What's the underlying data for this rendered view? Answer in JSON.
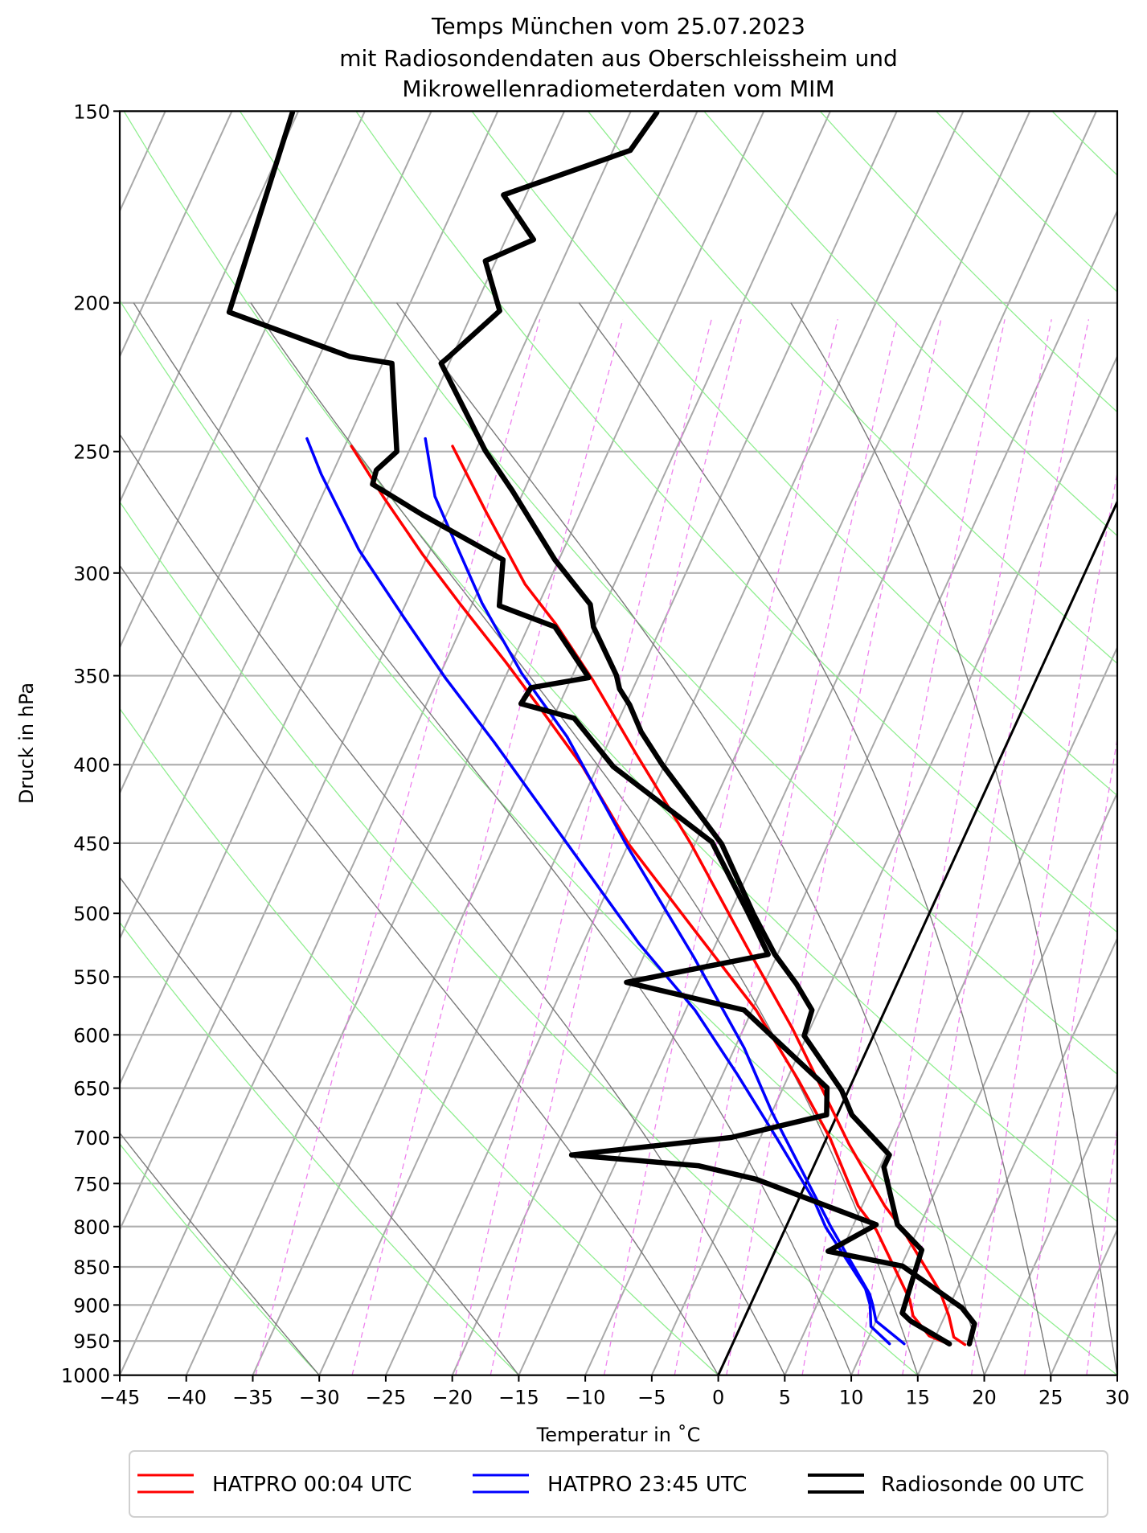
{
  "chart_data": {
    "type": "line",
    "subtype": "skew-T log-p diagram",
    "title": [
      "Temps München vom 25.07.2023",
      "mit Radiosondendaten aus Oberschleissheim und",
      "Mikrowellenradiometerdaten vom MIM"
    ],
    "xlabel": "Temperatur in ˚C",
    "ylabel": "Druck in hPa",
    "xlim": [
      -45,
      30
    ],
    "ylim": [
      1000,
      150
    ],
    "yscale": "log",
    "xticks": [
      -45,
      -40,
      -35,
      -30,
      -25,
      -20,
      -15,
      -10,
      -5,
      0,
      5,
      10,
      15,
      20,
      25,
      30
    ],
    "yticks": [
      150,
      200,
      250,
      300,
      350,
      400,
      450,
      500,
      550,
      600,
      650,
      700,
      750,
      800,
      850,
      900,
      950,
      1000
    ],
    "grid": true,
    "legend_position": "bottom",
    "background_lines": {
      "isotherm_step": 5,
      "isotherm_color": "#a9a9a9",
      "highlight_isotherm": 0,
      "highlight_isotherm_color": "#000000",
      "dry_adiabats_t0": [
        -30,
        -15,
        0,
        15,
        30,
        45,
        60,
        75,
        90,
        105,
        120,
        135,
        150,
        165,
        180
      ],
      "dry_adiabat_color": "#90ee90",
      "moist_adiabats_t0": [
        -30,
        -15,
        0,
        5,
        10,
        15,
        20,
        25,
        30
      ],
      "moist_adiabat_color": "#7a7a7a",
      "mixing_ratios_gkg": [
        0.2,
        0.4,
        0.8,
        1,
        2,
        3,
        4,
        6,
        8,
        10,
        14,
        18,
        24
      ],
      "mixing_ratio_color": "#ee82ee"
    },
    "series": [
      {
        "name": "HATPRO 00:04 UTC",
        "color": "#ff0000",
        "temperature": [
          [
            248,
            -51.9
          ],
          [
            273.8,
            -47.1
          ],
          [
            305.1,
            -41.7
          ],
          [
            324,
            -38.0
          ],
          [
            352.4,
            -33.3
          ],
          [
            393,
            -27.6
          ],
          [
            450.5,
            -20.3
          ],
          [
            533.9,
            -11.8
          ],
          [
            594.7,
            -6.3
          ],
          [
            707.1,
            1.9
          ],
          [
            775.6,
            6.7
          ],
          [
            804.3,
            8.9
          ],
          [
            882,
            13.8
          ],
          [
            914.7,
            15.3
          ],
          [
            944.4,
            16.4
          ],
          [
            955.2,
            17.5
          ]
        ],
        "dewpoint": [
          [
            248,
            -59.5
          ],
          [
            267.4,
            -55.4
          ],
          [
            291.9,
            -50.4
          ],
          [
            313.8,
            -46.0
          ],
          [
            342.8,
            -40.5
          ],
          [
            370,
            -35.9
          ],
          [
            401.2,
            -31.1
          ],
          [
            450.5,
            -25.0
          ],
          [
            512.6,
            -17.1
          ],
          [
            578.1,
            -9.7
          ],
          [
            642.3,
            -4.1
          ],
          [
            701.3,
            0.3
          ],
          [
            775.6,
            4.7
          ],
          [
            804.3,
            6.9
          ],
          [
            892.7,
            11.8
          ],
          [
            914.7,
            12.6
          ],
          [
            942.6,
            14.5
          ],
          [
            955.2,
            16.4
          ]
        ]
      },
      {
        "name": "HATPRO 23:45 UTC",
        "color": "#0000ff",
        "temperature": [
          [
            245.2,
            -54.2
          ],
          [
            267.4,
            -51.5
          ],
          [
            282.7,
            -49.0
          ],
          [
            313.8,
            -44.3
          ],
          [
            348.7,
            -38.9
          ],
          [
            383.6,
            -33.3
          ],
          [
            450.5,
            -25.2
          ],
          [
            533.9,
            -16.2
          ],
          [
            611.8,
            -9.3
          ],
          [
            673.8,
            -5.0
          ],
          [
            730.2,
            -1.1
          ],
          [
            800.9,
            3.4
          ],
          [
            885.5,
            8.6
          ],
          [
            899.9,
            9.2
          ],
          [
            921.9,
            10.0
          ],
          [
            954,
            12.9
          ]
        ],
        "dewpoint": [
          [
            245.2,
            -63.1
          ],
          [
            258.7,
            -60.8
          ],
          [
            289.6,
            -55.4
          ],
          [
            321.1,
            -49.6
          ],
          [
            351,
            -44.5
          ],
          [
            386.7,
            -38.6
          ],
          [
            450.5,
            -29.6
          ],
          [
            523.1,
            -20.8
          ],
          [
            578.1,
            -14.3
          ],
          [
            636.8,
            -8.9
          ],
          [
            701.3,
            -3.7
          ],
          [
            769.4,
            1.2
          ],
          [
            800.9,
            3.0
          ],
          [
            878.4,
            8.1
          ],
          [
            899.9,
            9.0
          ],
          [
            929.4,
            9.8
          ],
          [
            954,
            11.8
          ]
        ]
      },
      {
        "name": "Radiosonde 00 UTC",
        "color": "#000000",
        "temperature": [
          [
            150.3,
            -48.0
          ],
          [
            159.1,
            -48.7
          ],
          [
            170.1,
            -56.7
          ],
          [
            181.9,
            -52.9
          ],
          [
            187.8,
            -55.8
          ],
          [
            202.4,
            -53.0
          ],
          [
            217.2,
            -55.3
          ],
          [
            219,
            -55.6
          ],
          [
            249.6,
            -49.3
          ],
          [
            265,
            -45.9
          ],
          [
            294.1,
            -40.3
          ],
          [
            314.5,
            -36.1
          ],
          [
            325.2,
            -35.1
          ],
          [
            349.8,
            -31.7
          ],
          [
            357,
            -31.0
          ],
          [
            365.6,
            -29.7
          ],
          [
            380.8,
            -27.9
          ],
          [
            399.9,
            -25.2
          ],
          [
            450.5,
            -18.0
          ],
          [
            500.4,
            -13.2
          ],
          [
            531.8,
            -10.2
          ],
          [
            555.5,
            -7.6
          ],
          [
            578.1,
            -5.5
          ],
          [
            600.8,
            -5.2
          ],
          [
            652.3,
            -0.5
          ],
          [
            676.5,
            1.1
          ],
          [
            718.5,
            5.3
          ],
          [
            731.7,
            5.3
          ],
          [
            797.7,
            8.3
          ],
          [
            828.6,
            11.0
          ],
          [
            852.4,
            11.2
          ],
          [
            911,
            11.7
          ],
          [
            921.9,
            12.6
          ],
          [
            954,
            16.3
          ]
        ],
        "dewpoint": [
          [
            150.3,
            -75.4
          ],
          [
            202.8,
            -73.3
          ],
          [
            216.8,
            -62.7
          ],
          [
            219,
            -59.3
          ],
          [
            250,
            -55.9
          ],
          [
            257.1,
            -56.8
          ],
          [
            262.6,
            -56.6
          ],
          [
            274.9,
            -51.8
          ],
          [
            294.1,
            -44.2
          ],
          [
            315.1,
            -42.9
          ],
          [
            325.2,
            -38.0
          ],
          [
            351,
            -33.7
          ],
          [
            356.3,
            -37.7
          ],
          [
            365,
            -37.9
          ],
          [
            373.1,
            -33.4
          ],
          [
            401.2,
            -28.8
          ],
          [
            449.2,
            -18.8
          ],
          [
            500,
            -13.6
          ],
          [
            531.8,
            -10.7
          ],
          [
            554.5,
            -20.4
          ],
          [
            578.1,
            -10.6
          ],
          [
            649.6,
            -1.7
          ],
          [
            676.5,
            -0.8
          ],
          [
            699.9,
            -7.2
          ],
          [
            718.5,
            -18.6
          ],
          [
            730.2,
            -8.7
          ],
          [
            745.1,
            -3.9
          ],
          [
            797.7,
            6.7
          ],
          [
            830.2,
            4.0
          ],
          [
            848.9,
            10.1
          ],
          [
            903.7,
            16.0
          ],
          [
            925.7,
            17.5
          ],
          [
            954,
            17.8
          ]
        ]
      }
    ]
  }
}
